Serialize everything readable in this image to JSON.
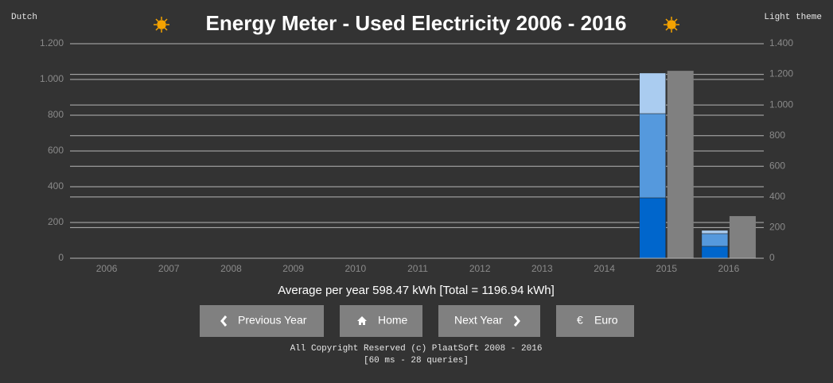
{
  "header": {
    "language_link": "Dutch",
    "theme_link": "Light theme"
  },
  "chart_data": {
    "type": "stacked-bar",
    "title": "Energy Meter - Used Electricity 2006 - 2016",
    "categories": [
      "2006",
      "2007",
      "2008",
      "2009",
      "2010",
      "2011",
      "2012",
      "2013",
      "2014",
      "2015",
      "2016"
    ],
    "series": [
      {
        "color": "#0066cc",
        "values": [
          0,
          0,
          0,
          0,
          0,
          0,
          0,
          0,
          0,
          338,
          67
        ]
      },
      {
        "color": "#5599dd",
        "values": [
          0,
          0,
          0,
          0,
          0,
          0,
          0,
          0,
          0,
          471,
          71
        ]
      },
      {
        "color": "#aaccf0",
        "values": [
          0,
          0,
          0,
          0,
          0,
          0,
          0,
          0,
          0,
          227,
          18
        ]
      },
      {
        "color": "#808080",
        "axis": "y2",
        "values": [
          0,
          0,
          0,
          0,
          0,
          0,
          0,
          0,
          0,
          1223,
          275
        ]
      }
    ],
    "ylim": [
      0,
      1200
    ],
    "yticks": [
      0,
      200,
      400,
      600,
      800,
      {
        "value": 1000,
        "label": "1.000"
      },
      {
        "value": 1200,
        "label": "1.200"
      }
    ],
    "y2lim": [
      0,
      1400
    ],
    "y2ticks": [
      0,
      200,
      400,
      600,
      800,
      {
        "value": 1000,
        "label": "1.000"
      },
      {
        "value": 1200,
        "label": "1.200"
      },
      {
        "value": 1400,
        "label": "1.400"
      }
    ],
    "grid": true
  },
  "summary": "Average per year 598.47 kWh [Total = 1196.94 kWh]",
  "buttons": [
    {
      "label": "Previous Year"
    },
    {
      "label": "Home"
    },
    {
      "label": "Next Year"
    },
    {
      "label": "Euro",
      "icon": "€"
    }
  ],
  "footer": [
    "All Copyright Reserved (c) PlaatSoft 2008 - 2016",
    "[60 ms - 28 queries]"
  ]
}
